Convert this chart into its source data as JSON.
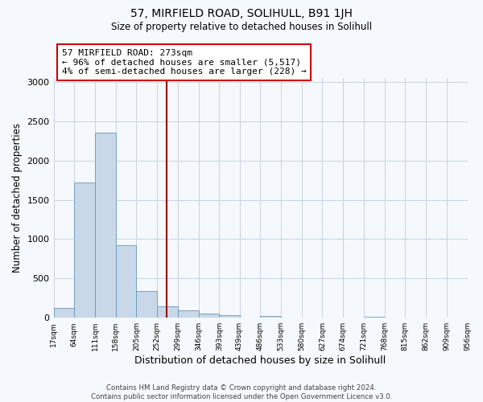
{
  "title": "57, MIRFIELD ROAD, SOLIHULL, B91 1JH",
  "subtitle": "Size of property relative to detached houses in Solihull",
  "xlabel": "Distribution of detached houses by size in Solihull",
  "ylabel": "Number of detached properties",
  "bin_edges": [
    17,
    64,
    111,
    158,
    205,
    252,
    299,
    346,
    393,
    439,
    486,
    533,
    580,
    627,
    674,
    721,
    768,
    815,
    862,
    909,
    956
  ],
  "bar_heights": [
    120,
    1720,
    2360,
    920,
    340,
    150,
    90,
    50,
    35,
    0,
    20,
    0,
    0,
    0,
    0,
    15,
    0,
    0,
    0,
    5
  ],
  "bar_color": "#c8d8e8",
  "bar_edge_color": "#6699bb",
  "vline_x": 273,
  "vline_color": "#990000",
  "annotation_line1": "57 MIRFIELD ROAD: 273sqm",
  "annotation_line2": "← 96% of detached houses are smaller (5,517)",
  "annotation_line3": "4% of semi-detached houses are larger (228) →",
  "annotation_box_color": "white",
  "annotation_box_edge_color": "#cc0000",
  "ylim": [
    0,
    3050
  ],
  "yticks": [
    0,
    500,
    1000,
    1500,
    2000,
    2500,
    3000
  ],
  "footer_line1": "Contains HM Land Registry data © Crown copyright and database right 2024.",
  "footer_line2": "Contains public sector information licensed under the Open Government Licence v3.0.",
  "background_color": "#f5f8fc",
  "plot_bg_color": "#f5f8fc",
  "grid_color": "#c8d4e0",
  "title_fontsize": 10,
  "subtitle_fontsize": 8.5
}
